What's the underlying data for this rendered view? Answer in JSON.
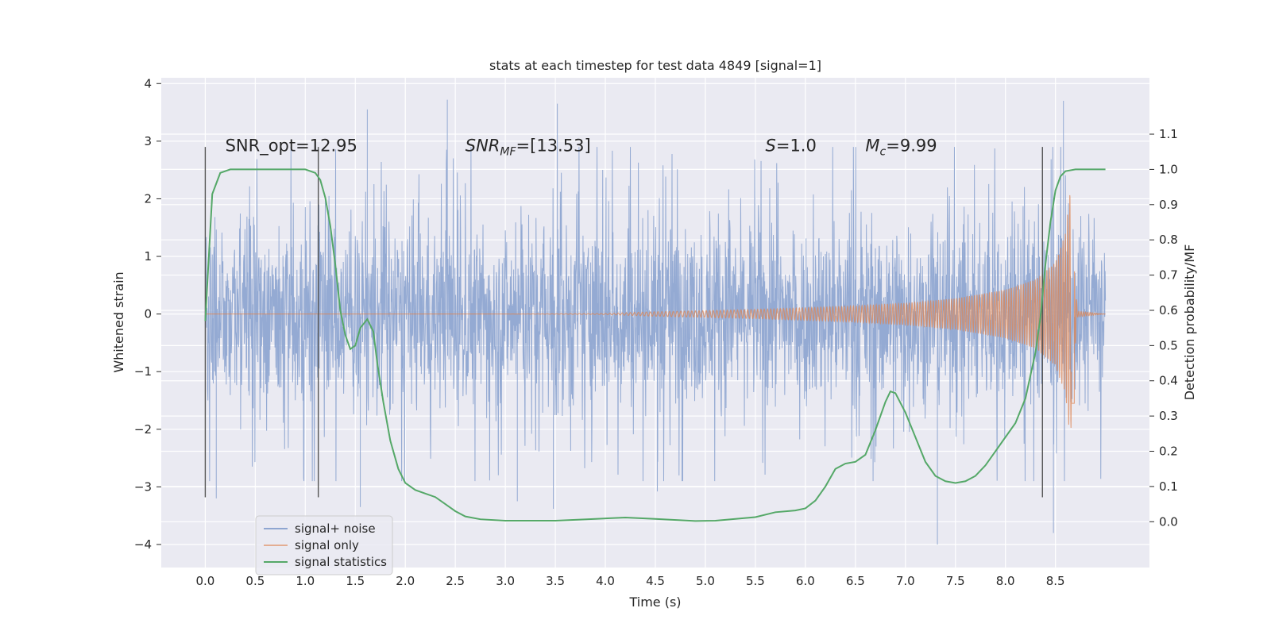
{
  "chart_data": {
    "type": "line",
    "title": "stats at each timestep for test data 4849 [signal=1]",
    "xlabel": "Time (s)",
    "ylabel": "Whitened strain",
    "ylabel_right": "Detection probability/MF",
    "xlim": [
      -0.44,
      9.44
    ],
    "ylim": [
      -4.4,
      4.1
    ],
    "ylim_right": [
      -0.13,
      1.26
    ],
    "x_ticks": [
      "0.0",
      "0.5",
      "1.0",
      "1.5",
      "2.0",
      "2.5",
      "3.0",
      "3.5",
      "4.0",
      "4.5",
      "5.0",
      "5.5",
      "6.0",
      "6.5",
      "7.0",
      "7.5",
      "8.0",
      "8.5"
    ],
    "y_ticks": [
      "−4",
      "−3",
      "−2",
      "−1",
      "0",
      "1",
      "2",
      "3",
      "4"
    ],
    "y_ticks_right": [
      "0.0",
      "0.1",
      "0.2",
      "0.3",
      "0.4",
      "0.5",
      "0.6",
      "0.7",
      "0.8",
      "0.9",
      "1.0",
      "1.1"
    ],
    "grid": true,
    "legend_position": "lower-left",
    "annotations": [
      {
        "text": "SNR_opt=12.95",
        "x": 0.2,
        "y": 2.92
      },
      {
        "text": "SNR_MF=[13.53]",
        "x": 2.6,
        "y": 2.92
      },
      {
        "text": "S=1.0",
        "x": 5.6,
        "y": 2.92
      },
      {
        "text": "M_c=9.99",
        "x": 6.6,
        "y": 2.92
      }
    ],
    "vertical_lines": [
      {
        "x": 0.0,
        "y_top": 2.9,
        "y_bottom": -3.18
      },
      {
        "x": 1.13,
        "y_top": 2.9,
        "y_bottom": -3.18
      },
      {
        "x": 8.37,
        "y_top": 2.9,
        "y_bottom": -3.18
      }
    ],
    "series": [
      {
        "name": "signal+ noise",
        "color": "#8fa6d1",
        "t_start": 0.0,
        "t_end": 9.0,
        "core_amplitude": 1.2,
        "spike_amplitude": 2.9,
        "notable_peaks": [
          {
            "x": 2.42,
            "y": 3.72
          },
          {
            "x": 3.52,
            "y": 3.65
          },
          {
            "x": 8.58,
            "y": 3.7
          },
          {
            "x": 1.62,
            "y": 3.55
          },
          {
            "x": 7.32,
            "y": -4.0
          },
          {
            "x": 8.48,
            "y": -3.8
          },
          {
            "x": 1.55,
            "y": -3.35
          },
          {
            "x": 3.48,
            "y": -3.38
          },
          {
            "x": 0.11,
            "y": -3.2
          },
          {
            "x": 4.52,
            "y": -3.08
          },
          {
            "x": 3.12,
            "y": -3.25
          }
        ]
      },
      {
        "name": "signal only",
        "color": "#dd8452",
        "envelope": {
          "x": [
            0.0,
            3.0,
            4.0,
            4.5,
            5.0,
            5.5,
            6.0,
            6.5,
            7.0,
            7.5,
            8.0,
            8.3,
            8.5,
            8.6,
            8.65,
            8.68,
            8.72,
            9.0
          ],
          "y": [
            0.0,
            0.0,
            0.01,
            0.04,
            0.06,
            0.08,
            0.11,
            0.14,
            0.19,
            0.27,
            0.42,
            0.6,
            0.9,
            1.4,
            2.2,
            1.0,
            0.05,
            0.0
          ]
        },
        "end_dip": -1.55
      },
      {
        "name": "signal statistics",
        "color": "#55a868",
        "x": [
          0.0,
          0.07,
          0.15,
          0.25,
          0.35,
          0.5,
          0.7,
          0.9,
          1.0,
          1.1,
          1.15,
          1.2,
          1.25,
          1.3,
          1.35,
          1.4,
          1.45,
          1.5,
          1.55,
          1.62,
          1.68,
          1.72,
          1.78,
          1.85,
          1.93,
          2.0,
          2.1,
          2.2,
          2.3,
          2.4,
          2.5,
          2.6,
          2.75,
          3.0,
          3.5,
          3.9,
          4.2,
          4.5,
          4.9,
          5.1,
          5.5,
          5.7,
          5.9,
          6.0,
          6.1,
          6.2,
          6.3,
          6.4,
          6.5,
          6.6,
          6.7,
          6.8,
          6.85,
          6.9,
          7.0,
          7.1,
          7.2,
          7.3,
          7.4,
          7.5,
          7.6,
          7.7,
          7.8,
          7.9,
          8.0,
          8.1,
          8.2,
          8.3,
          8.35,
          8.4,
          8.45,
          8.5,
          8.55,
          8.6,
          8.7,
          8.8,
          8.9,
          9.0
        ],
        "y": [
          0.57,
          0.93,
          0.99,
          1.0,
          1.0,
          1.0,
          1.0,
          1.0,
          1.0,
          0.99,
          0.97,
          0.92,
          0.84,
          0.73,
          0.6,
          0.53,
          0.49,
          0.5,
          0.55,
          0.575,
          0.54,
          0.45,
          0.34,
          0.23,
          0.15,
          0.11,
          0.09,
          0.08,
          0.07,
          0.05,
          0.03,
          0.015,
          0.007,
          0.003,
          0.003,
          0.008,
          0.012,
          0.008,
          0.002,
          0.003,
          0.013,
          0.027,
          0.032,
          0.038,
          0.06,
          0.1,
          0.15,
          0.165,
          0.17,
          0.19,
          0.26,
          0.34,
          0.37,
          0.365,
          0.31,
          0.24,
          0.17,
          0.13,
          0.115,
          0.11,
          0.115,
          0.13,
          0.16,
          0.2,
          0.24,
          0.28,
          0.35,
          0.48,
          0.58,
          0.73,
          0.85,
          0.94,
          0.98,
          0.995,
          1.0,
          1.0,
          1.0,
          1.0
        ]
      }
    ]
  },
  "legend": {
    "items": [
      "signal+ noise",
      "signal only",
      "signal statistics"
    ]
  }
}
